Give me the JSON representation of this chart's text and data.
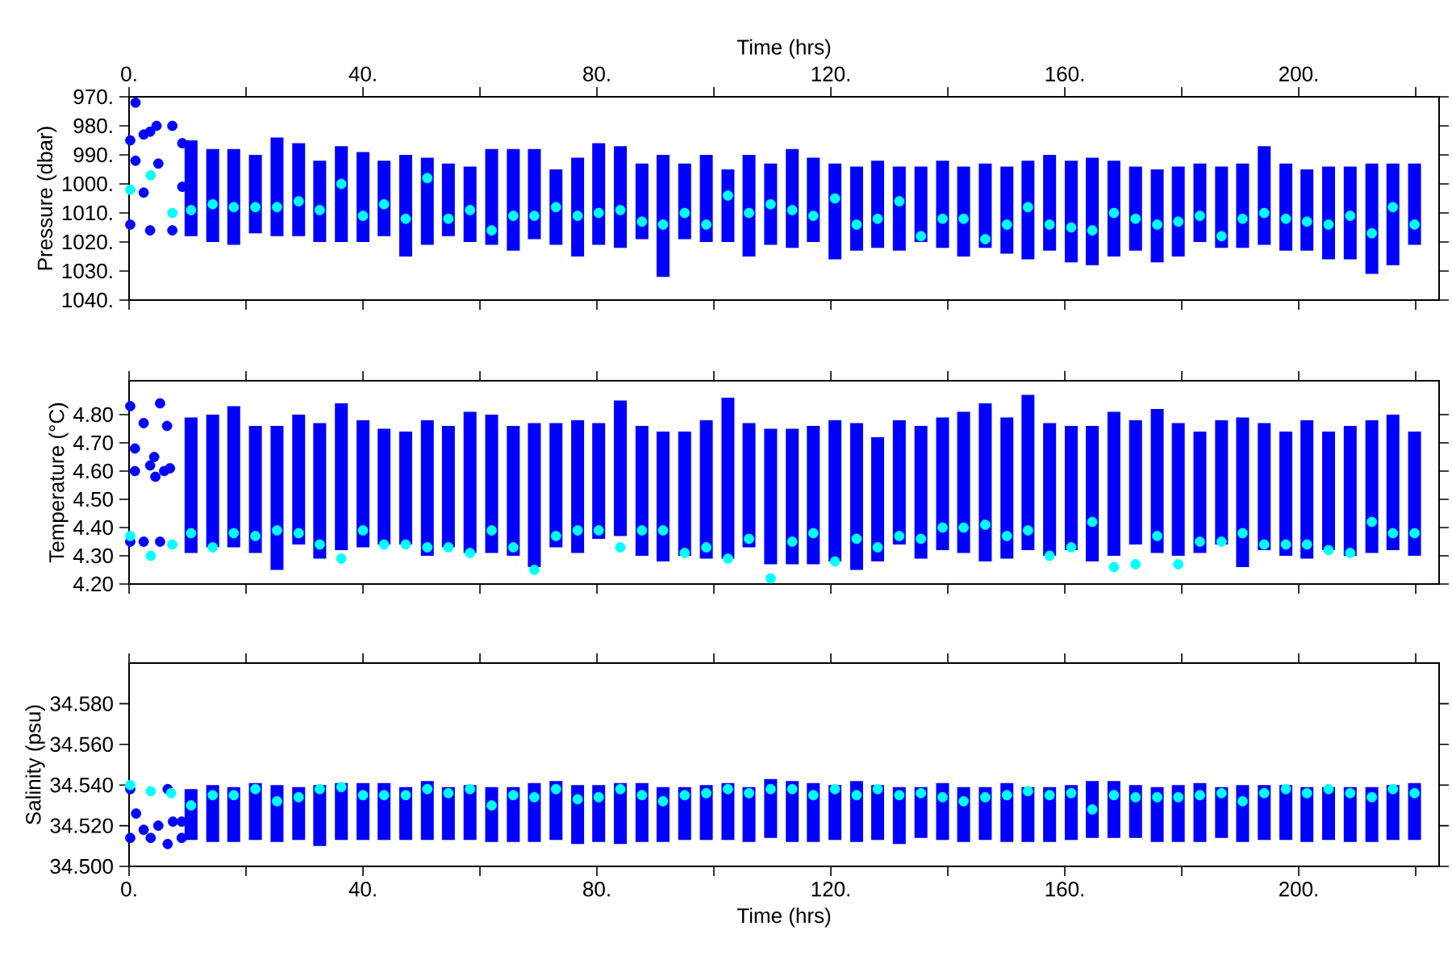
{
  "chart_data": [
    {
      "type": "scatter",
      "ylabel": "Pressure (dbar)",
      "x2label": "Time (hrs)",
      "marker": "circle",
      "tick_labels": "y",
      "xlim": [
        0,
        224
      ],
      "xticks": [
        0,
        20,
        40,
        60,
        80,
        100,
        120,
        140,
        160,
        180,
        200,
        220
      ],
      "x2lim": [
        0,
        224
      ],
      "x2ticks": [
        {
          "value": 0,
          "label": "0."
        },
        {
          "value": 20,
          "label": null
        },
        {
          "value": 40,
          "label": "40."
        },
        {
          "value": 60,
          "label": null
        },
        {
          "value": 80,
          "label": "80."
        },
        {
          "value": 100,
          "label": null
        },
        {
          "value": 120,
          "label": "120."
        },
        {
          "value": 140,
          "label": null
        },
        {
          "value": 160,
          "label": "160."
        },
        {
          "value": 180,
          "label": null
        },
        {
          "value": 200,
          "label": "200."
        },
        {
          "value": 220,
          "label": null
        }
      ],
      "ylim": [
        1040,
        970
      ],
      "yticks": [
        {
          "value": 970,
          "label": "970."
        },
        {
          "value": 980,
          "label": "980."
        },
        {
          "value": 990,
          "label": "990."
        },
        {
          "value": 1000,
          "label": "1000."
        },
        {
          "value": 1010,
          "label": "1010."
        },
        {
          "value": 1020,
          "label": "1020."
        },
        {
          "value": 1030,
          "label": "1030."
        },
        {
          "value": 1040,
          "label": "1040."
        }
      ],
      "series": [
        {
          "type": "bar",
          "color": "#0000ff",
          "x": [
            10.6,
            14.3,
            17.9,
            21.6,
            25.3,
            29.0,
            32.6,
            36.3,
            40.0,
            43.6,
            47.3,
            51.0,
            54.6,
            58.3,
            62.0,
            65.7,
            69.3,
            73.0,
            76.7,
            80.3,
            84.0,
            87.7,
            91.3,
            95.0,
            98.7,
            102.4,
            106.0,
            109.7,
            113.4,
            117.0,
            120.7,
            124.4,
            128.0,
            131.7,
            135.4,
            139.1,
            142.7,
            146.4,
            150.1,
            153.7,
            157.4,
            161.1,
            164.7,
            168.4,
            172.1,
            175.8,
            179.4,
            183.1,
            186.8,
            190.4,
            194.1,
            197.8,
            201.4,
            205.1,
            208.8,
            212.5,
            216.1,
            219.8
          ],
          "base": [
            985,
            988,
            988,
            990,
            984,
            986,
            992,
            987,
            989,
            992,
            990,
            991,
            993,
            994,
            988,
            988,
            988,
            995,
            991,
            986,
            987,
            993,
            990,
            993,
            990,
            995,
            990,
            993,
            988,
            991,
            993,
            994,
            992,
            994,
            994,
            992,
            994,
            993,
            994,
            992,
            990,
            992,
            991,
            992,
            994,
            995,
            994,
            993,
            994,
            993,
            987,
            993,
            995,
            994,
            994,
            993,
            993,
            993
          ],
          "values": [
            33,
            32,
            33,
            27,
            34,
            32,
            28,
            33,
            31,
            26,
            35,
            30,
            25,
            26,
            33,
            35,
            31,
            26,
            34,
            35,
            35,
            26,
            42,
            26,
            30,
            25,
            35,
            28,
            34,
            29,
            33,
            29,
            30,
            29,
            26,
            30,
            31,
            29,
            30,
            34,
            33,
            35,
            37,
            33,
            29,
            32,
            31,
            27,
            28,
            29,
            34,
            30,
            28,
            32,
            32,
            38,
            35,
            28
          ]
        },
        {
          "color": "#0000ff",
          "x": [
            0.2,
            0.2,
            1.1,
            1.1,
            2.5,
            2.5,
            3.6,
            3.6,
            4.7,
            5.0,
            7.4,
            7.4,
            9.1,
            9.1
          ],
          "values": [
            985,
            1014,
            972,
            992,
            983,
            1003,
            982,
            1016,
            980,
            993,
            980,
            1016,
            986,
            1001
          ]
        },
        {
          "color": "#00ffff",
          "x": [
            0.2,
            3.7,
            7.4,
            10.6,
            14.3,
            17.9,
            21.6,
            25.3,
            29.0,
            32.6,
            36.3,
            40.0,
            43.6,
            47.3,
            51.0,
            54.6,
            58.3,
            62.0,
            65.7,
            69.3,
            73.0,
            76.7,
            80.3,
            84.0,
            87.7,
            91.3,
            95.0,
            98.7,
            102.4,
            106.0,
            109.7,
            113.4,
            117.0,
            120.7,
            124.4,
            128.0,
            131.7,
            135.4,
            139.1,
            142.7,
            146.4,
            150.1,
            153.7,
            157.4,
            161.1,
            164.7,
            168.4,
            172.1,
            175.8,
            179.4,
            183.1,
            186.8,
            190.4,
            194.1,
            197.8,
            201.4,
            205.1,
            208.8,
            212.5,
            216.1,
            219.8
          ],
          "values": [
            1002,
            997,
            1010,
            1009,
            1007,
            1008,
            1008,
            1008,
            1006,
            1009,
            1000,
            1011,
            1007,
            1012,
            998,
            1012,
            1009,
            1016,
            1011,
            1011,
            1008,
            1011,
            1010,
            1009,
            1013,
            1014,
            1010,
            1014,
            1004,
            1010,
            1007,
            1009,
            1011,
            1005,
            1014,
            1012,
            1006,
            1018,
            1012,
            1012,
            1019,
            1014,
            1008,
            1014,
            1015,
            1016,
            1010,
            1012,
            1014,
            1013,
            1011,
            1018,
            1012,
            1010,
            1012,
            1013,
            1014,
            1011,
            1017,
            1008,
            1014
          ]
        }
      ]
    },
    {
      "type": "scatter",
      "ylabel": "Temperature (°C)",
      "marker": "circle",
      "tick_labels": "y",
      "xlim": [
        0,
        224
      ],
      "xticks": [
        0,
        20,
        40,
        60,
        80,
        100,
        120,
        140,
        160,
        180,
        200,
        220
      ],
      "ylim": [
        4.2,
        4.92
      ],
      "yticks": [
        {
          "value": 4.2,
          "label": "4.20"
        },
        {
          "value": 4.3,
          "label": "4.30"
        },
        {
          "value": 4.4,
          "label": "4.40"
        },
        {
          "value": 4.5,
          "label": "4.50"
        },
        {
          "value": 4.6,
          "label": "4.60"
        },
        {
          "value": 4.7,
          "label": "4.70"
        },
        {
          "value": 4.8,
          "label": "4.80"
        }
      ],
      "series": [
        {
          "type": "bar",
          "color": "#0000ff",
          "x": [
            10.6,
            14.3,
            17.9,
            21.6,
            25.3,
            29.0,
            32.6,
            36.3,
            40.0,
            43.6,
            47.3,
            51.0,
            54.6,
            58.3,
            62.0,
            65.7,
            69.3,
            73.0,
            76.7,
            80.3,
            84.0,
            87.7,
            91.3,
            95.0,
            98.7,
            102.4,
            106.0,
            109.7,
            113.4,
            117.0,
            120.7,
            124.4,
            128.0,
            131.7,
            135.4,
            139.1,
            142.7,
            146.4,
            150.1,
            153.7,
            157.4,
            161.1,
            164.7,
            168.4,
            172.1,
            175.8,
            179.4,
            183.1,
            186.8,
            190.4,
            194.1,
            197.8,
            201.4,
            205.1,
            208.8,
            212.5,
            216.1,
            219.8
          ],
          "base": [
            4.31,
            4.33,
            4.33,
            4.31,
            4.25,
            4.34,
            4.29,
            4.32,
            4.33,
            4.34,
            4.34,
            4.3,
            4.33,
            4.31,
            4.31,
            4.3,
            4.26,
            4.33,
            4.31,
            4.36,
            4.37,
            4.3,
            4.28,
            4.3,
            4.29,
            4.29,
            4.33,
            4.27,
            4.27,
            4.27,
            4.28,
            4.25,
            4.28,
            4.34,
            4.29,
            4.32,
            4.31,
            4.28,
            4.29,
            4.32,
            4.3,
            4.32,
            4.28,
            4.3,
            4.34,
            4.31,
            4.3,
            4.31,
            4.34,
            4.26,
            4.32,
            4.3,
            4.29,
            4.32,
            4.3,
            4.31,
            4.32,
            4.3
          ],
          "values": [
            0.48,
            0.47,
            0.5,
            0.45,
            0.51,
            0.46,
            0.48,
            0.52,
            0.45,
            0.41,
            0.4,
            0.48,
            0.43,
            0.5,
            0.49,
            0.46,
            0.51,
            0.44,
            0.47,
            0.41,
            0.48,
            0.46,
            0.46,
            0.44,
            0.49,
            0.57,
            0.44,
            0.48,
            0.48,
            0.49,
            0.5,
            0.52,
            0.44,
            0.44,
            0.47,
            0.47,
            0.5,
            0.56,
            0.5,
            0.55,
            0.47,
            0.44,
            0.48,
            0.51,
            0.44,
            0.51,
            0.47,
            0.43,
            0.44,
            0.53,
            0.45,
            0.44,
            0.49,
            0.42,
            0.46,
            0.47,
            0.48,
            0.44
          ]
        },
        {
          "color": "#0000ff",
          "x": [
            0.2,
            0.2,
            1.0,
            1.0,
            2.5,
            2.5,
            3.6,
            4.3,
            4.5,
            5.3,
            5.3,
            6.0,
            6.5,
            7.0
          ],
          "values": [
            4.83,
            4.35,
            4.68,
            4.6,
            4.77,
            4.35,
            4.62,
            4.65,
            4.58,
            4.84,
            4.35,
            4.6,
            4.76,
            4.61
          ]
        },
        {
          "color": "#00ffff",
          "x": [
            0.2,
            3.7,
            7.4,
            10.6,
            14.3,
            17.9,
            21.6,
            25.3,
            29.0,
            32.6,
            36.3,
            40.0,
            43.6,
            47.3,
            51.0,
            54.6,
            58.3,
            62.0,
            65.7,
            69.3,
            73.0,
            76.7,
            80.3,
            84.0,
            87.7,
            91.3,
            95.0,
            98.7,
            102.4,
            106.0,
            109.7,
            113.4,
            117.0,
            120.7,
            124.4,
            128.0,
            131.7,
            135.4,
            139.1,
            142.7,
            146.4,
            150.1,
            153.7,
            157.4,
            161.1,
            164.7,
            168.4,
            172.1,
            175.8,
            179.4,
            183.1,
            186.8,
            190.4,
            194.1,
            197.8,
            201.4,
            205.1,
            208.8,
            212.5,
            216.1,
            219.8
          ],
          "values": [
            4.37,
            4.3,
            4.34,
            4.38,
            4.33,
            4.38,
            4.37,
            4.39,
            4.38,
            4.34,
            4.29,
            4.39,
            4.34,
            4.34,
            4.33,
            4.33,
            4.31,
            4.39,
            4.33,
            4.25,
            4.37,
            4.39,
            4.39,
            4.33,
            4.39,
            4.39,
            4.31,
            4.33,
            4.29,
            4.36,
            4.22,
            4.35,
            4.38,
            4.28,
            4.36,
            4.33,
            4.37,
            4.36,
            4.4,
            4.4,
            4.41,
            4.37,
            4.39,
            4.3,
            4.33,
            4.42,
            4.26,
            4.27,
            4.37,
            4.27,
            4.35,
            4.35,
            4.38,
            4.34,
            4.34,
            4.34,
            4.32,
            4.31,
            4.42,
            4.38,
            4.38
          ]
        }
      ]
    },
    {
      "type": "scatter",
      "ylabel": "Salinity (psu)",
      "xlabel": "Time (hrs)",
      "marker": "circle",
      "xlim": [
        0,
        224
      ],
      "xticks": [
        {
          "value": 0,
          "label": "0."
        },
        {
          "value": 20,
          "label": null
        },
        {
          "value": 40,
          "label": "40."
        },
        {
          "value": 60,
          "label": null
        },
        {
          "value": 80,
          "label": "80."
        },
        {
          "value": 100,
          "label": null
        },
        {
          "value": 120,
          "label": "120."
        },
        {
          "value": 140,
          "label": null
        },
        {
          "value": 160,
          "label": "160."
        },
        {
          "value": 180,
          "label": null
        },
        {
          "value": 200,
          "label": "200."
        },
        {
          "value": 220,
          "label": null
        }
      ],
      "ylim": [
        34.5,
        34.6
      ],
      "yticks": [
        {
          "value": 34.5,
          "label": "34.500"
        },
        {
          "value": 34.52,
          "label": "34.520"
        },
        {
          "value": 34.54,
          "label": "34.540"
        },
        {
          "value": 34.56,
          "label": "34.560"
        },
        {
          "value": 34.58,
          "label": "34.580"
        }
      ],
      "series": [
        {
          "type": "bar",
          "color": "#0000ff",
          "x": [
            10.6,
            14.3,
            17.9,
            21.6,
            25.3,
            29.0,
            32.6,
            36.3,
            40.0,
            43.6,
            47.3,
            51.0,
            54.6,
            58.3,
            62.0,
            65.7,
            69.3,
            73.0,
            76.7,
            80.3,
            84.0,
            87.7,
            91.3,
            95.0,
            98.7,
            102.4,
            106.0,
            109.7,
            113.4,
            117.0,
            120.7,
            124.4,
            128.0,
            131.7,
            135.4,
            139.1,
            142.7,
            146.4,
            150.1,
            153.7,
            157.4,
            161.1,
            164.7,
            168.4,
            172.1,
            175.8,
            179.4,
            183.1,
            186.8,
            190.4,
            194.1,
            197.8,
            201.4,
            205.1,
            208.8,
            212.5,
            216.1,
            219.8
          ],
          "base": [
            34.513,
            34.512,
            34.512,
            34.513,
            34.512,
            34.513,
            34.51,
            34.513,
            34.513,
            34.513,
            34.513,
            34.513,
            34.513,
            34.513,
            34.512,
            34.512,
            34.512,
            34.513,
            34.511,
            34.512,
            34.511,
            34.512,
            34.512,
            34.513,
            34.513,
            34.513,
            34.512,
            34.514,
            34.512,
            34.512,
            34.513,
            34.512,
            34.513,
            34.511,
            34.514,
            34.513,
            34.512,
            34.513,
            34.512,
            34.512,
            34.512,
            34.513,
            34.514,
            34.514,
            34.514,
            34.512,
            34.512,
            34.512,
            34.514,
            34.512,
            34.513,
            34.513,
            34.512,
            34.513,
            34.512,
            34.512,
            34.513,
            34.513
          ],
          "values": [
            0.025,
            0.028,
            0.027,
            0.028,
            0.028,
            0.026,
            0.03,
            0.028,
            0.028,
            0.028,
            0.026,
            0.029,
            0.026,
            0.027,
            0.027,
            0.027,
            0.029,
            0.029,
            0.029,
            0.028,
            0.03,
            0.029,
            0.027,
            0.026,
            0.027,
            0.028,
            0.027,
            0.029,
            0.03,
            0.029,
            0.027,
            0.03,
            0.027,
            0.028,
            0.025,
            0.028,
            0.027,
            0.026,
            0.029,
            0.027,
            0.027,
            0.027,
            0.028,
            0.028,
            0.026,
            0.027,
            0.028,
            0.029,
            0.025,
            0.028,
            0.027,
            0.027,
            0.027,
            0.026,
            0.027,
            0.027,
            0.027,
            0.028
          ]
        },
        {
          "color": "#0000ff",
          "x": [
            0.2,
            0.2,
            1.2,
            2.5,
            3.7,
            5.0,
            6.6,
            6.6,
            7.5,
            9.0,
            9.0
          ],
          "values": [
            34.538,
            34.514,
            34.526,
            34.518,
            34.514,
            34.52,
            34.538,
            34.511,
            34.522,
            34.522,
            34.514
          ]
        },
        {
          "color": "#00ffff",
          "x": [
            0.2,
            3.7,
            7.2,
            10.6,
            14.3,
            17.9,
            21.6,
            25.3,
            29.0,
            32.6,
            36.3,
            40.0,
            43.6,
            47.3,
            51.0,
            54.6,
            58.3,
            62.0,
            65.7,
            69.3,
            73.0,
            76.7,
            80.3,
            84.0,
            87.7,
            91.3,
            95.0,
            98.7,
            102.4,
            106.0,
            109.7,
            113.4,
            117.0,
            120.7,
            124.4,
            128.0,
            131.7,
            135.4,
            139.1,
            142.7,
            146.4,
            150.1,
            153.7,
            157.4,
            161.1,
            164.7,
            168.4,
            172.1,
            175.8,
            179.4,
            183.1,
            186.8,
            190.4,
            194.1,
            197.8,
            201.4,
            205.1,
            208.8,
            212.5,
            216.1,
            219.8
          ],
          "values": [
            34.54,
            34.537,
            34.536,
            34.53,
            34.535,
            34.535,
            34.538,
            34.532,
            34.534,
            34.538,
            34.539,
            34.535,
            34.535,
            34.535,
            34.538,
            34.536,
            34.538,
            34.53,
            34.535,
            34.534,
            34.538,
            34.533,
            34.534,
            34.538,
            34.535,
            34.532,
            34.535,
            34.536,
            34.538,
            34.536,
            34.538,
            34.538,
            34.535,
            34.538,
            34.535,
            34.538,
            34.535,
            34.536,
            34.534,
            34.532,
            34.534,
            34.535,
            34.537,
            34.535,
            34.536,
            34.528,
            34.535,
            34.534,
            34.534,
            34.534,
            34.535,
            34.536,
            34.532,
            34.536,
            34.538,
            34.536,
            34.538,
            34.536,
            34.534,
            34.538,
            34.536
          ]
        }
      ]
    }
  ]
}
